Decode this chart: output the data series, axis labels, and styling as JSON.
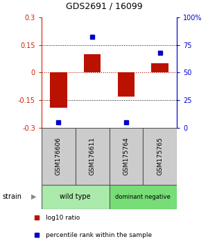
{
  "title": "GDS2691 / 16099",
  "samples": [
    "GSM176606",
    "GSM176611",
    "GSM175764",
    "GSM175765"
  ],
  "log10_ratio": [
    -0.19,
    0.1,
    -0.13,
    0.05
  ],
  "percentile_rank": [
    5,
    82,
    5,
    68
  ],
  "groups": [
    {
      "label": "wild type",
      "indices": [
        0,
        1
      ],
      "color": "#aaeaaa"
    },
    {
      "label": "dominant negative",
      "indices": [
        2,
        3
      ],
      "color": "#77dd77"
    }
  ],
  "ylim_left": [
    -0.3,
    0.3
  ],
  "ylim_right": [
    0,
    100
  ],
  "yticks_left": [
    -0.3,
    -0.15,
    0,
    0.15,
    0.3
  ],
  "ytick_labels_left": [
    "-0.3",
    "-0.15",
    "0",
    "0.15",
    "0.3"
  ],
  "yticks_right": [
    0,
    25,
    50,
    75,
    100
  ],
  "ytick_labels_right": [
    "0",
    "25",
    "50",
    "75",
    "100%"
  ],
  "hlines_dotted": [
    -0.15,
    0.15
  ],
  "hline_red": 0,
  "bar_color": "#bb1100",
  "point_color": "#0000cc",
  "bar_width": 0.5,
  "left_axis_color": "#cc2200",
  "right_axis_color": "#0000cc",
  "legend_bar_label": "log10 ratio",
  "legend_point_label": "percentile rank within the sample",
  "strain_label": "strain",
  "sample_box_color": "#cccccc",
  "n_samples": 4
}
